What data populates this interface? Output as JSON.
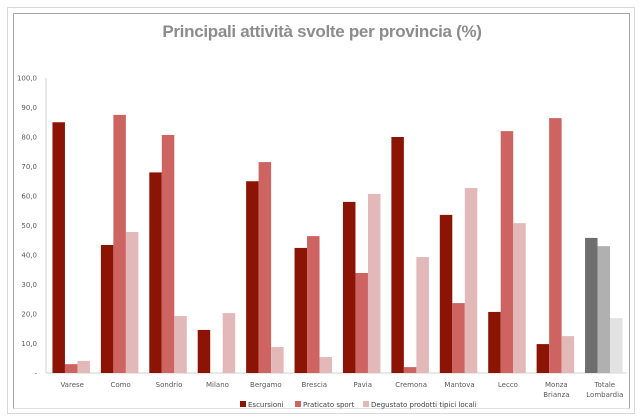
{
  "chart_data": {
    "type": "bar",
    "title": "Principali attività svolte per provincia (%)",
    "xlabel": "",
    "ylabel": "",
    "ylim": [
      0,
      100
    ],
    "yticks": [
      "-",
      "10,0",
      "20,0",
      "30,0",
      "40,0",
      "50,0",
      "60,0",
      "70,0",
      "80,0",
      "90,0",
      "100,0"
    ],
    "categories": [
      [
        "Varese"
      ],
      [
        "Como"
      ],
      [
        "Sondrio"
      ],
      [
        "Milano"
      ],
      [
        "Bergamo"
      ],
      [
        "Brescia"
      ],
      [
        "Pavia"
      ],
      [
        "Cremona"
      ],
      [
        "Mantova"
      ],
      [
        "Lecco"
      ],
      [
        "Monza",
        "Brianza"
      ],
      [
        "Totale",
        "Lombardia"
      ]
    ],
    "series": [
      {
        "name": "Escursioni",
        "color": "#8b1405",
        "total_color": "#6e6e6e",
        "values": [
          85.0,
          43.4,
          68.0,
          14.6,
          65.0,
          42.4,
          58.0,
          80.0,
          53.6,
          20.7,
          9.8,
          45.8
        ]
      },
      {
        "name": "Praticato sport",
        "color": "#cd6462",
        "total_color": "#b0b0b0",
        "values": [
          3.0,
          87.5,
          80.7,
          0,
          71.5,
          46.4,
          33.9,
          2.0,
          23.7,
          82.0,
          86.4,
          43.0
        ]
      },
      {
        "name": "Degustato prodotti tipici locali",
        "color": "#e3b8b8",
        "total_color": "#e2e2e2",
        "values": [
          4.1,
          47.8,
          19.3,
          20.3,
          8.8,
          5.4,
          60.7,
          39.3,
          62.7,
          50.8,
          12.5,
          18.6
        ]
      }
    ],
    "grid": false,
    "legend_position": "bottom"
  }
}
